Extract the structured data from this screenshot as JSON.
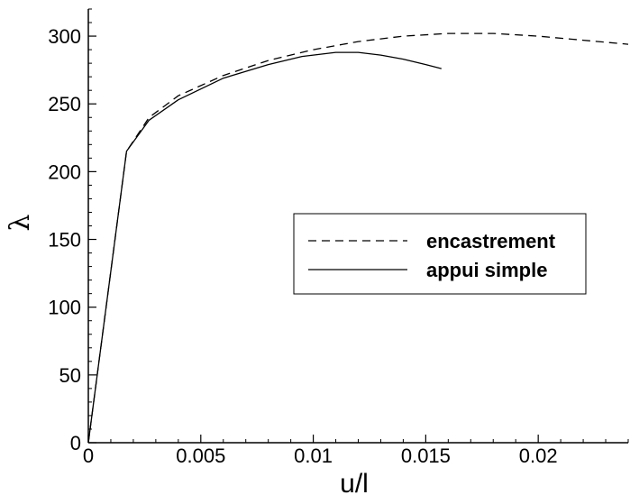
{
  "chart_data": {
    "type": "line",
    "title": "",
    "xlabel": "u/l",
    "ylabel": "λ",
    "xlim": [
      0,
      0.024
    ],
    "ylim": [
      0,
      320
    ],
    "x_ticks": [
      0,
      0.005,
      0.01,
      0.015,
      0.02
    ],
    "x_tick_labels": [
      "0",
      "0.005",
      "0.01",
      "0.015",
      "0.02"
    ],
    "y_ticks": [
      0,
      50,
      100,
      150,
      200,
      250,
      300
    ],
    "y_tick_labels": [
      "0",
      "50",
      "100",
      "150",
      "200",
      "250",
      "300"
    ],
    "grid": false,
    "legend_position": "center-right",
    "series": [
      {
        "name": "encastrement",
        "style": "dashed",
        "color": "#000000",
        "x": [
          0,
          0.0017,
          0.0027,
          0.004,
          0.006,
          0.008,
          0.01,
          0.012,
          0.014,
          0.016,
          0.018,
          0.02,
          0.022,
          0.024
        ],
        "y": [
          0,
          215,
          240,
          256,
          271,
          282,
          290,
          296,
          300,
          302,
          302,
          300,
          297,
          294
        ]
      },
      {
        "name": "appui simple",
        "style": "solid",
        "color": "#000000",
        "x": [
          0,
          0.0017,
          0.0027,
          0.004,
          0.006,
          0.008,
          0.0095,
          0.011,
          0.012,
          0.013,
          0.014,
          0.015,
          0.0157
        ],
        "y": [
          0,
          215,
          238,
          253,
          269,
          279,
          285,
          288,
          288,
          286,
          283,
          279,
          276
        ]
      }
    ]
  }
}
